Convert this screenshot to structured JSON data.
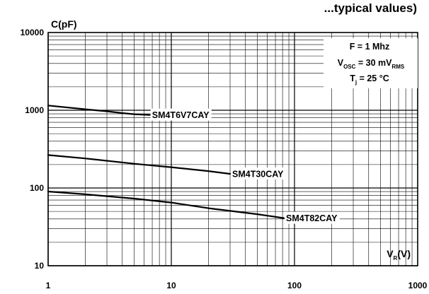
{
  "chart_data": {
    "type": "line",
    "title": "...typical values)",
    "ylabel": {
      "main": "C(pF)"
    },
    "xlabel": {
      "main": "V",
      "sub": "R",
      "unit": "(V)"
    },
    "x_scale": "log",
    "y_scale": "log",
    "xlim": [
      1,
      1000
    ],
    "ylim": [
      10,
      10000
    ],
    "x_ticks": [
      "1",
      "10",
      "100",
      "1000"
    ],
    "y_ticks": [
      "10",
      "100",
      "1000",
      "10000"
    ],
    "grid": true,
    "conditions": [
      {
        "main": "F = 1 Mhz"
      },
      {
        "main": "V",
        "sub": "OSC",
        "rest": " = 30 mV",
        "sub2": "RMS"
      },
      {
        "main": "T",
        "sub": "j",
        "rest": " = 25 °C"
      }
    ],
    "series": [
      {
        "name": "SM4T6V7CAY",
        "x": [
          1,
          2,
          3,
          4,
          5,
          6.7
        ],
        "y": [
          1150,
          1030,
          970,
          920,
          890,
          870
        ]
      },
      {
        "name": "SM4T30CAY",
        "x": [
          1,
          2,
          5,
          10,
          20,
          30
        ],
        "y": [
          265,
          240,
          205,
          185,
          165,
          152
        ]
      },
      {
        "name": "SM4T82CAY",
        "x": [
          1,
          2,
          5,
          10,
          20,
          50,
          82
        ],
        "y": [
          90,
          83,
          73,
          65,
          55,
          46,
          41
        ]
      }
    ]
  }
}
